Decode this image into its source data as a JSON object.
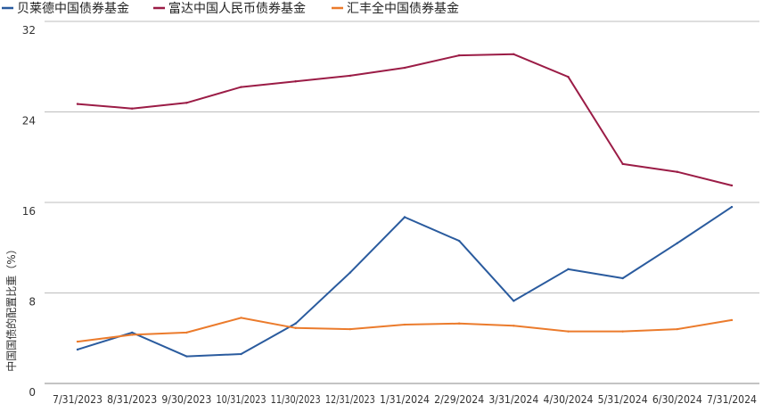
{
  "chart_data": {
    "type": "line",
    "title": "",
    "xlabel": "",
    "ylabel": "中国国债的配置比重（%）",
    "ylim": [
      0,
      32
    ],
    "yticks": [
      0,
      8,
      16,
      24,
      32
    ],
    "grid": true,
    "legend_position": "top-left",
    "categories": [
      "7/31/2023",
      "8/31/2023",
      "9/30/2023",
      "10/31/2023",
      "11/30/2023",
      "12/31/2023",
      "1/31/2024",
      "2/29/2024",
      "3/31/2024",
      "4/30/2024",
      "5/31/2024",
      "6/30/2024",
      "7/31/2024"
    ],
    "series": [
      {
        "name": "贝莱德中国债券基金",
        "color": "#2a5b9e",
        "values": [
          3.0,
          4.5,
          2.4,
          2.6,
          5.3,
          9.8,
          14.7,
          12.6,
          7.3,
          10.1,
          9.3,
          12.4,
          15.6
        ]
      },
      {
        "name": "富达中国人民币债券基金",
        "color": "#9b1c46",
        "values": [
          24.7,
          24.3,
          24.8,
          26.2,
          26.7,
          27.2,
          27.9,
          29.0,
          29.1,
          27.1,
          19.4,
          18.7,
          17.5
        ]
      },
      {
        "name": "汇丰全中国债券基金",
        "color": "#eb7b2c",
        "values": [
          3.7,
          4.3,
          4.5,
          5.8,
          4.9,
          4.8,
          5.2,
          5.3,
          5.1,
          4.6,
          4.6,
          4.8,
          5.6
        ]
      }
    ]
  }
}
